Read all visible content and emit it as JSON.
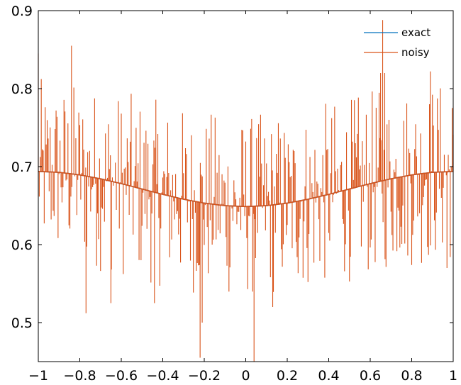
{
  "chart_data": {
    "type": "line",
    "title": "",
    "xlabel": "",
    "ylabel": "",
    "xlim": [
      -1,
      1
    ],
    "ylim": [
      0.45,
      0.9
    ],
    "grid": false,
    "legend_position": "top-right",
    "x_ticks": [
      -1,
      -0.8,
      -0.6,
      -0.4,
      -0.2,
      0,
      0.2,
      0.4,
      0.6,
      0.8,
      1
    ],
    "x_tick_labels": [
      "−1",
      "−0.8",
      "−0.6",
      "−0.4",
      "−0.2",
      "0",
      "0.2",
      "0.4",
      "0.6",
      "0.8",
      "1"
    ],
    "y_ticks": [
      0.5,
      0.6,
      0.7,
      0.8,
      0.9
    ],
    "y_tick_labels": [
      "0.5",
      "0.6",
      "0.7",
      "0.8",
      "0.9"
    ],
    "series": [
      {
        "name": "exact",
        "color": "#0072bd",
        "x": [
          -1,
          -0.9,
          -0.8,
          -0.7,
          -0.6,
          -0.5,
          -0.4,
          -0.3,
          -0.2,
          -0.1,
          0,
          0.1,
          0.2,
          0.3,
          0.4,
          0.5,
          0.6,
          0.7,
          0.8,
          0.9,
          1
        ],
        "y": [
          0.6938,
          0.6927,
          0.6894,
          0.6844,
          0.6782,
          0.6713,
          0.6644,
          0.6582,
          0.6532,
          0.6499,
          0.6488,
          0.6499,
          0.6532,
          0.6582,
          0.6644,
          0.6713,
          0.6782,
          0.6844,
          0.6894,
          0.6927,
          0.6938
        ]
      },
      {
        "name": "noisy",
        "color": "#d95319",
        "x": [
          -1,
          -0.9,
          -0.8,
          -0.7,
          -0.6,
          -0.5,
          -0.4,
          -0.3,
          -0.2,
          -0.1,
          0,
          0.1,
          0.2,
          0.3,
          0.4,
          0.5,
          0.6,
          0.7,
          0.8,
          0.9,
          1
        ],
        "y": [
          0.6938,
          0.6927,
          0.6894,
          0.6844,
          0.6782,
          0.6713,
          0.6644,
          0.6582,
          0.6532,
          0.6499,
          0.6488,
          0.6499,
          0.6532,
          0.6582,
          0.6644,
          0.6713,
          0.6782,
          0.6844,
          0.6894,
          0.6927,
          0.6938
        ],
        "noise_amplitude_approx": 0.12,
        "noisy_extremes": [
          {
            "x": -1.0,
            "y": 0.845
          },
          {
            "x": -0.84,
            "y": 0.855
          },
          {
            "x": -0.77,
            "y": 0.512
          },
          {
            "x": -0.65,
            "y": 0.525
          },
          {
            "x": -0.44,
            "y": 0.525
          },
          {
            "x": -0.22,
            "y": 0.455
          },
          {
            "x": -0.21,
            "y": 0.5
          },
          {
            "x": 0.04,
            "y": 0.45
          },
          {
            "x": 0.13,
            "y": 0.52
          },
          {
            "x": 0.66,
            "y": 0.888
          },
          {
            "x": 0.65,
            "y": 0.82
          },
          {
            "x": 0.67,
            "y": 0.82
          },
          {
            "x": 0.89,
            "y": 0.822
          },
          {
            "x": 0.97,
            "y": 0.57
          }
        ]
      }
    ]
  }
}
